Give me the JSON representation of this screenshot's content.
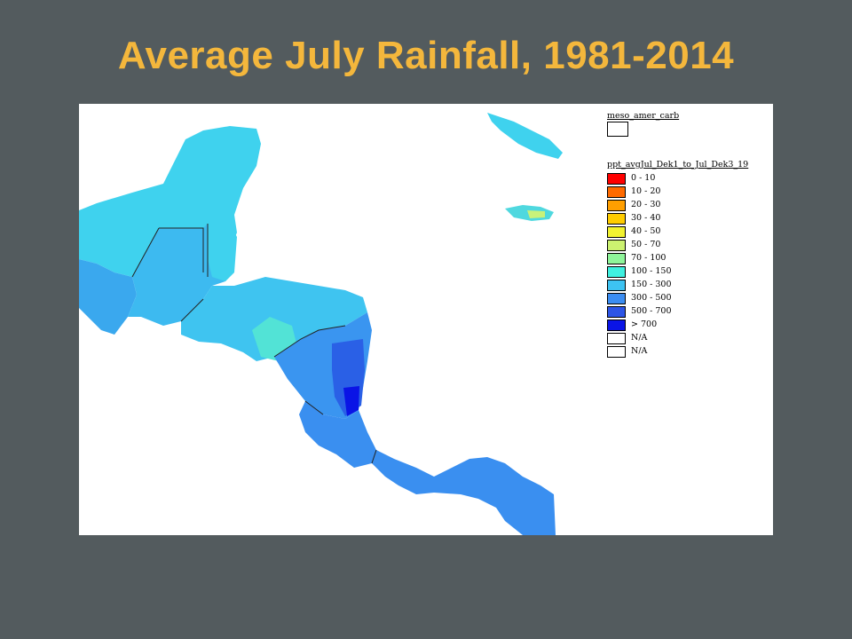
{
  "slide": {
    "title": "Average July Rainfall, 1981-2014"
  },
  "map": {
    "region": "Central America and Caribbean",
    "variable": "Average July rainfall",
    "legend": {
      "layer_name": "meso_amer_carb",
      "ppt_layer_name": "ppt_avgJul_Dek1_to_Jul_Dek3_19",
      "classes": [
        {
          "label": "0 - 10",
          "color": "#ff0000"
        },
        {
          "label": "10 - 20",
          "color": "#ff6a00"
        },
        {
          "label": "20 - 30",
          "color": "#ff9f00"
        },
        {
          "label": "30 - 40",
          "color": "#ffcc00"
        },
        {
          "label": "40 - 50",
          "color": "#f2f230"
        },
        {
          "label": "50 - 70",
          "color": "#ccf270"
        },
        {
          "label": "70 - 100",
          "color": "#8ff59a"
        },
        {
          "label": "100 - 150",
          "color": "#3ff0e0"
        },
        {
          "label": "150 - 300",
          "color": "#3dc3f2"
        },
        {
          "label": "300 - 500",
          "color": "#3b8df2"
        },
        {
          "label": "500 - 700",
          "color": "#2d55e6"
        },
        {
          "label": "> 700",
          "color": "#0a14e6"
        },
        {
          "label": "N/A",
          "color": "#ffffff"
        },
        {
          "label": "N/A",
          "color": "#ffffff"
        }
      ]
    },
    "colors": {
      "background": "#535b5e",
      "title": "#f4b73c",
      "ocean": "#ffffff"
    }
  }
}
